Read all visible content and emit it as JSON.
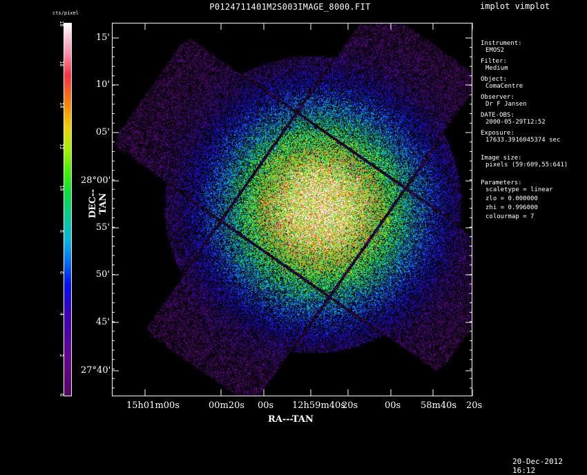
{
  "window": {
    "app_title": "implot vimplot"
  },
  "image": {
    "title": "P0124711401M2S003IMAGE_8000.FIT"
  },
  "colorbar": {
    "unit": "cts/pixel",
    "range": [
      0,
      18
    ],
    "ticks": [
      "0",
      "2",
      "4",
      "6",
      "8",
      "10",
      "12",
      "14",
      "16",
      "18"
    ]
  },
  "axes": {
    "y_name": "DEC--TAN",
    "x_name": "RA---TAN",
    "y_ticks": [
      "15'",
      "10'",
      "05'",
      "28°00'",
      "55'",
      "50'",
      "45'",
      "27°40'"
    ],
    "x_ticks": [
      "15h01m00s",
      "00m20s",
      "00s",
      "12h59m40s",
      "20s",
      "00s",
      "58m40s",
      "20s"
    ]
  },
  "info": [
    {
      "key": "Instrument:",
      "value": "EMOS2"
    },
    {
      "key": "Filter:",
      "value": "Medium"
    },
    {
      "key": "Object:",
      "value": "ComaCentre"
    },
    {
      "key": "Observer:",
      "value": "Dr F Jansen"
    },
    {
      "key": "DATE-OBS:",
      "value": "2000-05-29T12:52"
    },
    {
      "key": "Exposure:",
      "value": "17633.3916045374 sec"
    },
    {
      "key": "Image size:",
      "value": "pixels (59:609,55:641)"
    },
    {
      "key": "Parameters:",
      "value": "scaletype = linear"
    },
    {
      "key": "",
      "value": "zlo = 0.000000"
    },
    {
      "key": "",
      "value": "zhi = 0.996000"
    },
    {
      "key": "",
      "value": "colourmap =   7"
    }
  ],
  "footer": {
    "timestamp": "20-Dec-2012 16:12"
  }
}
